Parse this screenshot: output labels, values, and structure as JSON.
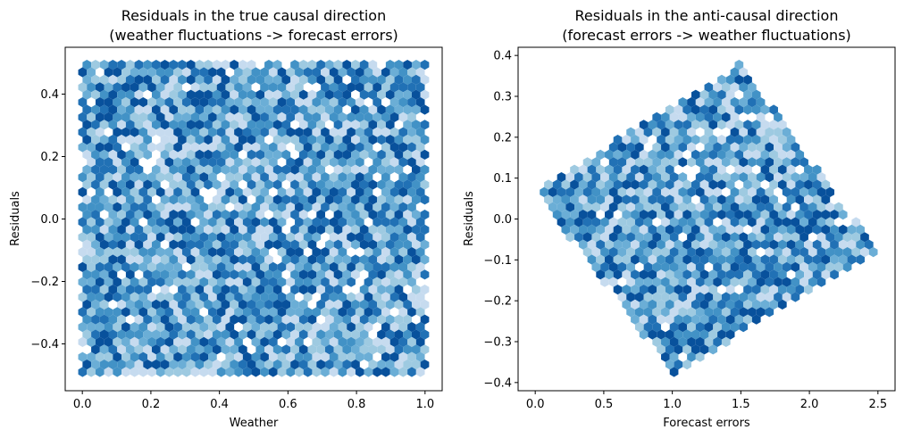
{
  "chart_data": [
    {
      "type": "hexbin",
      "title": "Residuals in the true causal direction",
      "subtitle": "(weather fluctuations -> forecast errors)",
      "xlabel": "Weather",
      "ylabel": "Residuals",
      "xlim": [
        -0.05,
        1.05
      ],
      "ylim": [
        -0.55,
        0.55
      ],
      "xticks": [
        0.0,
        0.2,
        0.4,
        0.6,
        0.8,
        1.0
      ],
      "xtick_labels": [
        "0.0",
        "0.2",
        "0.4",
        "0.6",
        "0.8",
        "1.0"
      ],
      "yticks": [
        -0.4,
        -0.2,
        0.0,
        0.2,
        0.4
      ],
      "ytick_labels": [
        "−0.4",
        "−0.2",
        "0.0",
        "0.2",
        "0.4"
      ],
      "region": {
        "shape": "rectangle",
        "x": [
          0.0,
          1.0
        ],
        "y": [
          -0.5,
          0.5
        ]
      },
      "colormap": [
        "#c6dbef",
        "#9ecae1",
        "#6baed6",
        "#4292c6",
        "#2171b5",
        "#08519c"
      ],
      "seed": 11
    },
    {
      "type": "hexbin",
      "title": "Residuals in the anti-causal direction",
      "subtitle": "(forecast errors -> weather fluctuations)",
      "xlabel": "Forecast errors",
      "ylabel": "Residuals",
      "xlim": [
        -0.125,
        2.625
      ],
      "ylim": [
        -0.42,
        0.42
      ],
      "xticks": [
        0.0,
        0.5,
        1.0,
        1.5,
        2.0,
        2.5
      ],
      "xtick_labels": [
        "0.0",
        "0.5",
        "1.0",
        "1.5",
        "2.0",
        "2.5"
      ],
      "yticks": [
        -0.4,
        -0.3,
        -0.2,
        -0.1,
        0.0,
        0.1,
        0.2,
        0.3,
        0.4
      ],
      "ytick_labels": [
        "−0.4",
        "−0.3",
        "−0.2",
        "−0.1",
        "0.0",
        "0.1",
        "0.2",
        "0.3",
        "0.4"
      ],
      "region": {
        "shape": "polygon",
        "vertices": [
          [
            0.0,
            0.07
          ],
          [
            1.5,
            0.38
          ],
          [
            2.5,
            -0.08
          ],
          [
            1.0,
            -0.38
          ]
        ]
      },
      "colormap": [
        "#c6dbef",
        "#9ecae1",
        "#6baed6",
        "#4292c6",
        "#2171b5",
        "#08519c"
      ],
      "seed": 29
    }
  ]
}
